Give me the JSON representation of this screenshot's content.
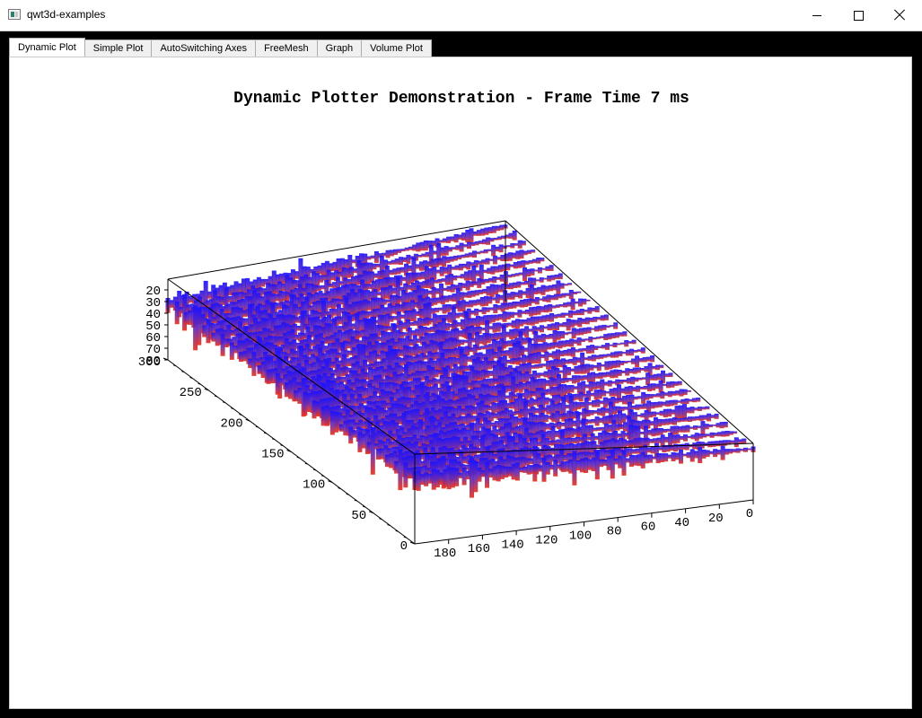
{
  "window": {
    "title": "qwt3d-examples",
    "icon": "app-icon"
  },
  "tabs": [
    {
      "label": "Dynamic Plot",
      "active": true
    },
    {
      "label": "Simple Plot",
      "active": false
    },
    {
      "label": "AutoSwitching Axes",
      "active": false
    },
    {
      "label": "FreeMesh",
      "active": false
    },
    {
      "label": "Graph",
      "active": false
    },
    {
      "label": "Volume Plot",
      "active": false
    }
  ],
  "plot": {
    "title": "Dynamic Plotter Demonstration - Frame Time 7 ms",
    "z_ticks": [
      "20",
      "30",
      "40",
      "50",
      "60",
      "70",
      "80"
    ],
    "left_axis_ticks": [
      "300",
      "250",
      "200",
      "150",
      "100",
      "50",
      "0"
    ],
    "front_axis_ticks": [
      "180",
      "160",
      "140",
      "120",
      "100",
      "80",
      "60",
      "40",
      "20",
      "0"
    ],
    "colors": {
      "high": "#1a12ff",
      "mid": "#6a2ab0",
      "low": "#e8301a"
    }
  }
}
